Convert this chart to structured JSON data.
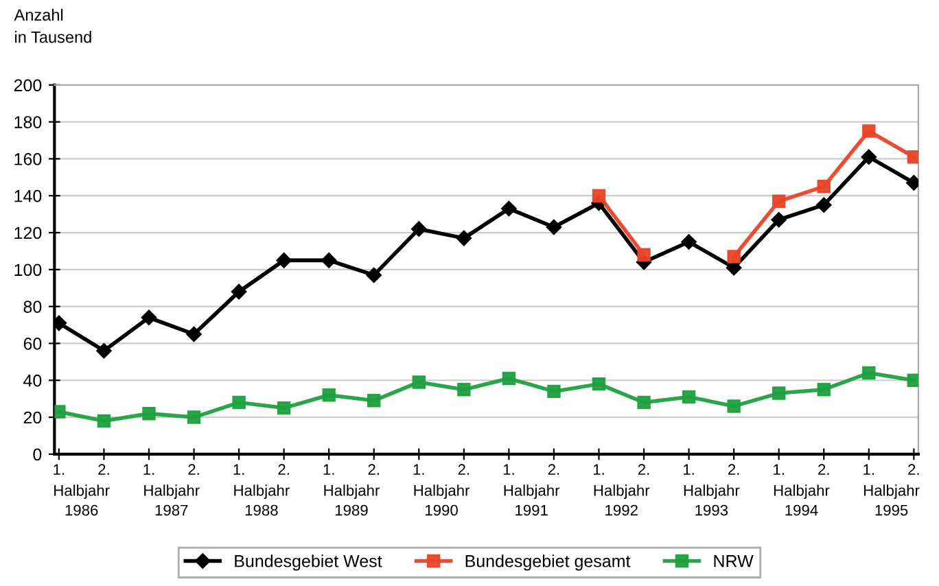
{
  "chart_data": {
    "type": "line",
    "ylabel": "Anzahl\nin Tausend",
    "categories": [
      "1.",
      "2.",
      "1.",
      "2.",
      "1.",
      "2.",
      "1.",
      "2.",
      "1.",
      "2.",
      "1.",
      "2.",
      "1.",
      "2.",
      "1.",
      "2.",
      "1.",
      "2.",
      "1.",
      "2."
    ],
    "annotations": [
      "Halbjahr\n1986",
      "Halbjahr\n1987",
      "Halbjahr\n1988",
      "Halbjahr\n1989",
      "Halbjahr\n1990",
      "Halbjahr\n1991",
      "Halbjahr\n1992",
      "Halbjahr\n1993",
      "Halbjahr\n1994",
      "Halbjahr\n1995"
    ],
    "series": [
      {
        "name": "Bundesgebiet West",
        "color": "#000000",
        "marker": "diamond",
        "values": [
          71,
          56,
          74,
          65,
          88,
          105,
          105,
          97,
          122,
          117,
          133,
          123,
          136,
          104,
          115,
          101,
          127,
          135,
          161,
          147
        ]
      },
      {
        "name": "Bundesgebiet gesamt",
        "color": "#e8442a",
        "marker": "square",
        "values": [
          null,
          null,
          null,
          null,
          null,
          null,
          null,
          null,
          null,
          null,
          null,
          null,
          140,
          108,
          null,
          107,
          137,
          145,
          175,
          161
        ]
      },
      {
        "name": "NRW",
        "color": "#20a040",
        "marker": "square",
        "values": [
          23,
          18,
          22,
          20,
          28,
          25,
          32,
          29,
          39,
          35,
          41,
          34,
          38,
          28,
          31,
          26,
          33,
          35,
          44,
          40
        ]
      }
    ],
    "ylim": [
      0,
      200
    ],
    "yticks": [
      0,
      20,
      40,
      60,
      80,
      100,
      120,
      140,
      160,
      180,
      200
    ],
    "grid": "y",
    "legend": "bottom"
  }
}
